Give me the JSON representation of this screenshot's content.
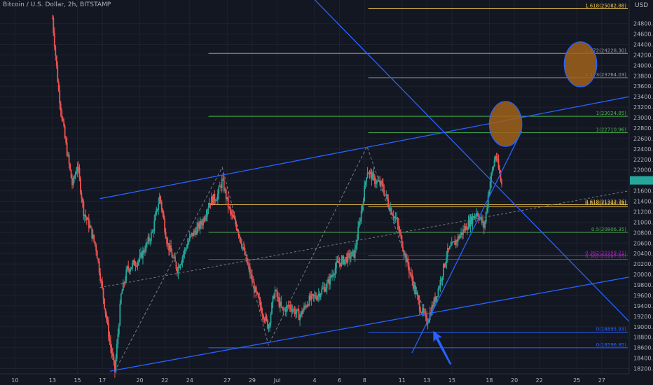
{
  "header": {
    "symbol": "Bitcoin / U.S. Dollar, 2h, BITSTAMP",
    "currency": "USD"
  },
  "colors": {
    "background": "#131722",
    "up": "#26a69a",
    "down": "#ef5350",
    "trend": "#2962ff",
    "fib_gold": "#f0c64e",
    "fib_green": "#4caf50",
    "fib_gray": "#9598a1",
    "fib_purple": "#9c27b0",
    "fib_blue": "#2962ff",
    "circle_fill": "#a0611a",
    "arrow": "#2962ff",
    "dashed": "#787b86"
  },
  "chart_data": {
    "type": "candlestick",
    "title": "Bitcoin / U.S. Dollar, 2h, BITSTAMP",
    "ylabel": "USD",
    "ylim": [
      18100,
      25250
    ],
    "y_ticks": [
      18200,
      18400,
      18600,
      18800,
      19000,
      19200,
      19400,
      19600,
      19800,
      20000,
      20200,
      20400,
      20600,
      20800,
      21000,
      21200,
      21400,
      21600,
      21800,
      22000,
      22200,
      22400,
      22600,
      22800,
      23000,
      23200,
      23400,
      23600,
      23800,
      24000,
      24200,
      24400,
      24600,
      24800
    ],
    "x_ticks": [
      {
        "label": "10",
        "day": 10
      },
      {
        "label": "13",
        "day": 13
      },
      {
        "label": "15",
        "day": 15
      },
      {
        "label": "17",
        "day": 17
      },
      {
        "label": "20",
        "day": 20
      },
      {
        "label": "22",
        "day": 22
      },
      {
        "label": "24",
        "day": 24
      },
      {
        "label": "27",
        "day": 27
      },
      {
        "label": "29",
        "day": 29
      },
      {
        "label": "Jul",
        "day": 31
      },
      {
        "label": "4",
        "day": 34
      },
      {
        "label": "6",
        "day": 36
      },
      {
        "label": "8",
        "day": 38
      },
      {
        "label": "11",
        "day": 41
      },
      {
        "label": "13",
        "day": 43
      },
      {
        "label": "15",
        "day": 45
      },
      {
        "label": "18",
        "day": 48
      },
      {
        "label": "20",
        "day": 50
      },
      {
        "label": "22",
        "day": 52
      },
      {
        "label": "25",
        "day": 55
      },
      {
        "label": "27",
        "day": 57
      }
    ],
    "x_range_days": [
      8.8,
      59.2
    ],
    "current_price": 21800,
    "price_path": [
      {
        "day": 13.0,
        "price": 24900
      },
      {
        "day": 13.5,
        "price": 23500
      },
      {
        "day": 14.0,
        "price": 22600
      },
      {
        "day": 14.6,
        "price": 21700
      },
      {
        "day": 15.0,
        "price": 22100
      },
      {
        "day": 15.5,
        "price": 21200
      },
      {
        "day": 16.0,
        "price": 20900
      },
      {
        "day": 16.5,
        "price": 20500
      },
      {
        "day": 17.0,
        "price": 19700
      },
      {
        "day": 17.6,
        "price": 18700
      },
      {
        "day": 18.0,
        "price": 18150
      },
      {
        "day": 18.5,
        "price": 19600
      },
      {
        "day": 19.0,
        "price": 20100
      },
      {
        "day": 20.0,
        "price": 20300
      },
      {
        "day": 21.0,
        "price": 20800
      },
      {
        "day": 21.6,
        "price": 21500
      },
      {
        "day": 22.2,
        "price": 20600
      },
      {
        "day": 23.0,
        "price": 20100
      },
      {
        "day": 24.0,
        "price": 20700
      },
      {
        "day": 25.0,
        "price": 21000
      },
      {
        "day": 25.6,
        "price": 21400
      },
      {
        "day": 26.2,
        "price": 21500
      },
      {
        "day": 26.6,
        "price": 21800
      },
      {
        "day": 27.2,
        "price": 21200
      },
      {
        "day": 27.8,
        "price": 20900
      },
      {
        "day": 28.5,
        "price": 20300
      },
      {
        "day": 29.2,
        "price": 19700
      },
      {
        "day": 29.8,
        "price": 19300
      },
      {
        "day": 30.3,
        "price": 19000
      },
      {
        "day": 30.8,
        "price": 19700
      },
      {
        "day": 31.4,
        "price": 19300
      },
      {
        "day": 32.0,
        "price": 19400
      },
      {
        "day": 32.8,
        "price": 19200
      },
      {
        "day": 33.5,
        "price": 19500
      },
      {
        "day": 34.2,
        "price": 19600
      },
      {
        "day": 35.0,
        "price": 19800
      },
      {
        "day": 35.8,
        "price": 20200
      },
      {
        "day": 36.5,
        "price": 20300
      },
      {
        "day": 37.2,
        "price": 20400
      },
      {
        "day": 37.8,
        "price": 21300
      },
      {
        "day": 38.2,
        "price": 22000
      },
      {
        "day": 38.8,
        "price": 21800
      },
      {
        "day": 39.4,
        "price": 21700
      },
      {
        "day": 40.0,
        "price": 21300
      },
      {
        "day": 40.6,
        "price": 21000
      },
      {
        "day": 41.2,
        "price": 20400
      },
      {
        "day": 41.8,
        "price": 19900
      },
      {
        "day": 42.4,
        "price": 19400
      },
      {
        "day": 43.0,
        "price": 19100
      },
      {
        "day": 43.6,
        "price": 19500
      },
      {
        "day": 44.0,
        "price": 19800
      },
      {
        "day": 44.6,
        "price": 20400
      },
      {
        "day": 45.2,
        "price": 20600
      },
      {
        "day": 45.8,
        "price": 20800
      },
      {
        "day": 46.4,
        "price": 21000
      },
      {
        "day": 47.0,
        "price": 21200
      },
      {
        "day": 47.6,
        "price": 20900
      },
      {
        "day": 48.0,
        "price": 21700
      },
      {
        "day": 48.5,
        "price": 22300
      },
      {
        "day": 49.0,
        "price": 21700
      }
    ],
    "fib_levels": [
      {
        "label": "1.618(25082.88)",
        "price": 25082.88,
        "color": "#f0c64e",
        "day_start": 38.3,
        "day_end": 59.2
      },
      {
        "label": "1.272(24228.30)",
        "price": 24228.3,
        "color": "#9598a1",
        "day_start": 25.5,
        "day_end": 59.2
      },
      {
        "label": "1.173(23764.03)",
        "price": 23764.03,
        "color": "#9598a1",
        "day_start": 38.3,
        "day_end": 59.2
      },
      {
        "label": "1(23024.85)",
        "price": 23024.85,
        "color": "#4caf50",
        "day_start": 25.5,
        "day_end": 59.2
      },
      {
        "label": "1(22710.96)",
        "price": 22710.96,
        "color": "#4caf50",
        "day_start": 38.3,
        "day_end": 59.2
      },
      {
        "label": "0.618(21332.76)",
        "price": 21332.76,
        "color": "#f0c64e",
        "day_start": 25.5,
        "day_end": 59.2
      },
      {
        "label": "0.618(21297.34)",
        "price": 21297.34,
        "color": "#f0c64e",
        "day_start": 38.3,
        "day_end": 59.2
      },
      {
        "label": "0.5(20806.35)",
        "price": 20806.35,
        "color": "#4caf50",
        "day_start": 25.5,
        "day_end": 59.2
      },
      {
        "label": "0.382(20359.21)",
        "price": 20359.21,
        "color": "#9c27b0",
        "day_start": 38.3,
        "day_end": 59.2
      },
      {
        "label": "0.382(20287.05)",
        "price": 20287.05,
        "color": "#9c27b0",
        "day_start": 25.5,
        "day_end": 59.2
      },
      {
        "label": "0(18895.93)",
        "price": 18895.93,
        "color": "#2962ff",
        "day_start": 38.3,
        "day_end": 59.2
      },
      {
        "label": "0(18596.85)",
        "price": 18596.85,
        "color": "#2962ff",
        "day_start": 25.5,
        "day_end": 59.2
      }
    ],
    "trend_lines": [
      {
        "name": "upper-channel",
        "from": {
          "day": 16.8,
          "price": 21450
        },
        "to": {
          "day": 59.2,
          "price": 23400
        }
      },
      {
        "name": "lower-channel",
        "from": {
          "day": 17.6,
          "price": 18150
        },
        "to": {
          "day": 59.2,
          "price": 19950
        }
      },
      {
        "name": "descending",
        "from": {
          "day": 33.0,
          "price": 25500
        },
        "to": {
          "day": 59.2,
          "price": 19100
        }
      },
      {
        "name": "steep-support",
        "from": {
          "day": 41.8,
          "price": 18500
        },
        "to": {
          "day": 50.6,
          "price": 22750
        }
      }
    ],
    "dashed_lines": [
      {
        "name": "midline",
        "from": {
          "day": 16.8,
          "price": 19750
        },
        "to": {
          "day": 59.2,
          "price": 21600
        }
      },
      {
        "name": "zigzag",
        "points": [
          {
            "day": 18.0,
            "price": 18150
          },
          {
            "day": 26.6,
            "price": 22050
          },
          {
            "day": 30.3,
            "price": 18650
          },
          {
            "day": 38.2,
            "price": 22450
          },
          {
            "day": 43.0,
            "price": 19150
          }
        ]
      }
    ],
    "circles": [
      {
        "name": "target-circle-1",
        "center": {
          "day": 49.3,
          "price": 22880
        },
        "r_days": 1.3,
        "r_price": 430
      },
      {
        "name": "target-circle-2",
        "center": {
          "day": 55.3,
          "price": 24020
        },
        "r_days": 1.3,
        "r_price": 430
      }
    ],
    "arrow": {
      "tip": {
        "day": 43.5,
        "price": 18920
      },
      "tail": {
        "day": 44.9,
        "price": 18280
      }
    }
  }
}
